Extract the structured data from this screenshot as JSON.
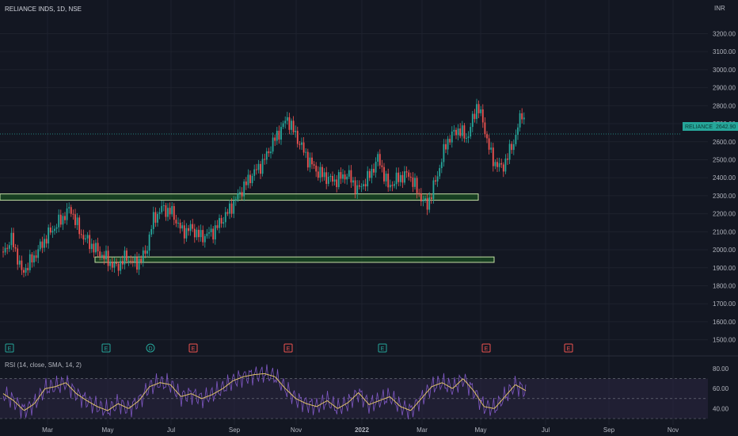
{
  "header": {
    "symbol_line": "RELIANCE INDS, 1D, NSE",
    "currency": "INR"
  },
  "price_label": {
    "symbol": "RELIANCE",
    "value": "2642.90"
  },
  "rsi_label": "RSI (14, close, SMA, 14, 2)",
  "colors": {
    "background": "#131722",
    "grid": "#1e222d",
    "up": "#26a69a",
    "down": "#ef5350",
    "zone_fill": "#1b5e20",
    "zone_stroke": "#c5e1a5",
    "rsi_line": "#7e57c2",
    "rsi_ma": "#e0c36a",
    "rsi_band": "#2a2540",
    "price_tag": "#26a69a",
    "earnings_badge": "#26a69a",
    "dividend_badge": "#26a69a",
    "future_badge": "#ef5350"
  },
  "event_badges": [
    {
      "letter": "E",
      "kind": "earnings"
    },
    {
      "letter": "E",
      "kind": "earnings"
    },
    {
      "letter": "D",
      "kind": "dividend"
    },
    {
      "letter": "E",
      "kind": "future"
    },
    {
      "letter": "E",
      "kind": "future"
    },
    {
      "letter": "E",
      "kind": "earnings"
    },
    {
      "letter": "E",
      "kind": "future"
    },
    {
      "letter": "E",
      "kind": "future"
    }
  ],
  "chart_data": [
    {
      "type": "candlestick",
      "title": "RELIANCE INDS, 1D, NSE",
      "ylabel": "INR",
      "ylim": [
        1450,
        3290
      ],
      "y_ticks": [
        3200,
        3100,
        3000,
        2900,
        2800,
        2700,
        2600,
        2500,
        2400,
        2300,
        2200,
        2100,
        2000,
        1900,
        1800,
        1700,
        1600,
        1500
      ],
      "x_ticks": [
        "Mar",
        "May",
        "Jul",
        "Sep",
        "Nov",
        "2022",
        "Mar",
        "May",
        "Jul",
        "Sep",
        "Nov"
      ],
      "grid": true,
      "last_close": 2642.9,
      "support_zones": [
        [
          2275,
          2310
        ],
        [
          1930,
          1960
        ]
      ],
      "close_path": [
        [
          "2021-01-01",
          1990
        ],
        [
          "2021-01-10",
          2060
        ],
        [
          "2021-01-20",
          1870
        ],
        [
          "2021-02-01",
          1960
        ],
        [
          "2021-02-15",
          2080
        ],
        [
          "2021-03-01",
          2170
        ],
        [
          "2021-03-10",
          2230
        ],
        [
          "2021-03-20",
          2090
        ],
        [
          "2021-04-01",
          2020
        ],
        [
          "2021-04-15",
          1950
        ],
        [
          "2021-04-25",
          1900
        ],
        [
          "2021-05-05",
          1960
        ],
        [
          "2021-05-15",
          1920
        ],
        [
          "2021-05-25",
          1980
        ],
        [
          "2021-06-01",
          2160
        ],
        [
          "2021-06-10",
          2230
        ],
        [
          "2021-06-20",
          2210
        ],
        [
          "2021-07-01",
          2100
        ],
        [
          "2021-07-10",
          2120
        ],
        [
          "2021-07-20",
          2070
        ],
        [
          "2021-08-01",
          2100
        ],
        [
          "2021-08-15",
          2200
        ],
        [
          "2021-09-01",
          2350
        ],
        [
          "2021-09-10",
          2420
        ],
        [
          "2021-09-20",
          2480
        ],
        [
          "2021-10-01",
          2600
        ],
        [
          "2021-10-15",
          2730
        ],
        [
          "2021-10-25",
          2620
        ],
        [
          "2021-11-05",
          2500
        ],
        [
          "2021-11-15",
          2430
        ],
        [
          "2021-12-01",
          2380
        ],
        [
          "2021-12-15",
          2420
        ],
        [
          "2021-12-25",
          2330
        ],
        [
          "2022-01-05",
          2400
        ],
        [
          "2022-01-15",
          2510
        ],
        [
          "2022-01-25",
          2350
        ],
        [
          "2022-02-05",
          2400
        ],
        [
          "2022-02-15",
          2420
        ],
        [
          "2022-02-25",
          2310
        ],
        [
          "2022-03-05",
          2240
        ],
        [
          "2022-03-15",
          2400
        ],
        [
          "2022-03-25",
          2600
        ],
        [
          "2022-04-05",
          2670
        ],
        [
          "2022-04-15",
          2620
        ],
        [
          "2022-04-25",
          2810
        ],
        [
          "2022-05-01",
          2700
        ],
        [
          "2022-05-10",
          2500
        ],
        [
          "2022-05-20",
          2450
        ],
        [
          "2022-06-01",
          2600
        ],
        [
          "2022-06-10",
          2780
        ],
        [
          "2022-06-13",
          2642.9
        ]
      ]
    },
    {
      "type": "line",
      "title": "RSI (14, close, SMA, 14, 2)",
      "ylim": [
        30,
        88
      ],
      "y_ticks": [
        80,
        60,
        40
      ],
      "bands": [
        70,
        50,
        30
      ],
      "series": [
        {
          "values": [
            55,
            48,
            38,
            45,
            60,
            62,
            66,
            55,
            48,
            42,
            38,
            45,
            40,
            48,
            62,
            66,
            64,
            52,
            55,
            50,
            54,
            60,
            68,
            72,
            74,
            75,
            72,
            60,
            50,
            45,
            42,
            48,
            40,
            46,
            56,
            44,
            48,
            52,
            42,
            38,
            50,
            62,
            66,
            60,
            70,
            58,
            42,
            40,
            52,
            64,
            58
          ]
        }
      ]
    }
  ]
}
